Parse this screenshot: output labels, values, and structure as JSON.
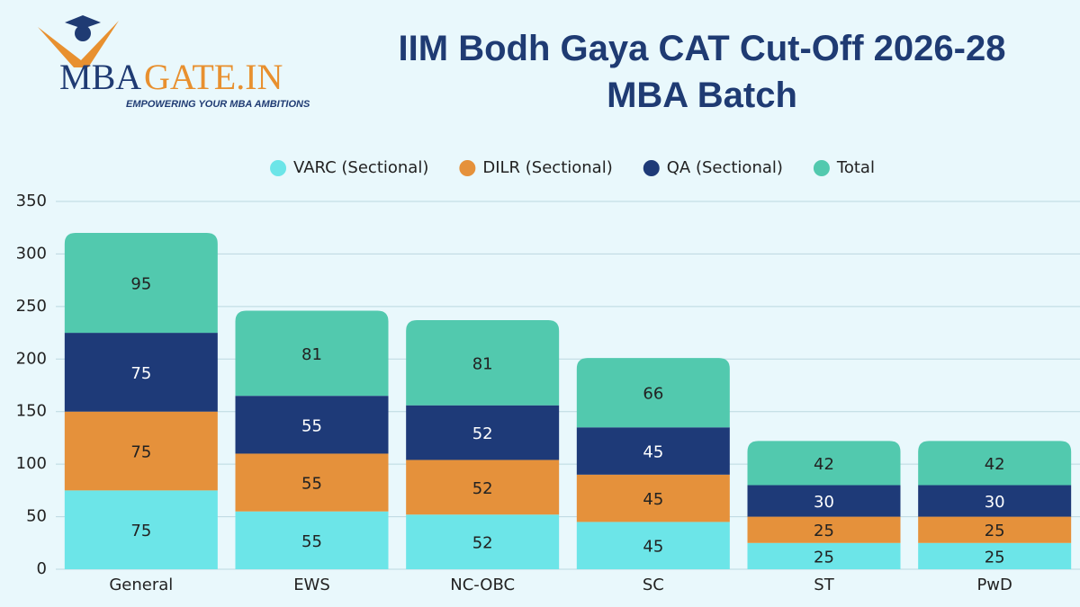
{
  "logo": {
    "brand_left": "MBA",
    "brand_right": "GATE.IN",
    "tagline": "EMPOWERING YOUR MBA AMBITIONS"
  },
  "chart_data": {
    "type": "stacked_bar",
    "title": "IIM Bodh Gaya CAT Cut-Off 2026-28 MBA Batch",
    "categories": [
      "General",
      "EWS",
      "NC-OBC",
      "SC",
      "ST",
      "PwD"
    ],
    "series": [
      {
        "name": "VARC (Sectional)",
        "color": "#6ce5e8",
        "values": [
          75,
          55,
          52,
          45,
          25,
          25
        ]
      },
      {
        "name": "DILR (Sectional)",
        "color": "#e5913b",
        "values": [
          75,
          55,
          52,
          45,
          25,
          25
        ]
      },
      {
        "name": "QA (Sectional)",
        "color": "#1e3a78",
        "values": [
          75,
          55,
          52,
          45,
          30,
          30
        ]
      },
      {
        "name": "Total",
        "color": "#52c9ae",
        "values": [
          95,
          81,
          81,
          66,
          42,
          42
        ]
      }
    ],
    "ylim": [
      0,
      350
    ],
    "yticks": [
      0,
      50,
      100,
      150,
      200,
      250,
      300,
      350
    ],
    "grid": true,
    "legend": "top"
  }
}
